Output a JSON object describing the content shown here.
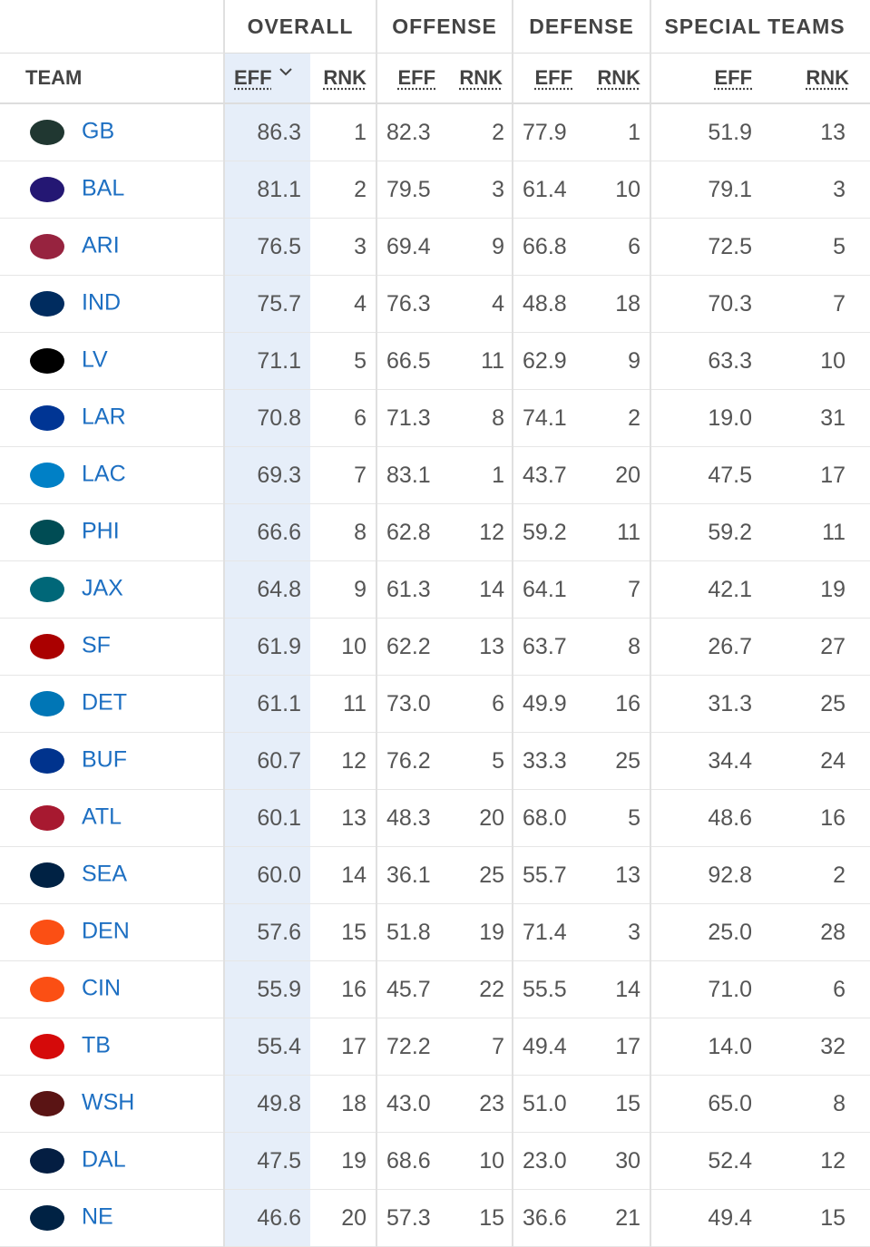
{
  "header": {
    "groups": [
      "OVERALL",
      "OFFENSE",
      "DEFENSE",
      "SPECIAL TEAMS"
    ],
    "columns": [
      "TEAM",
      "EFF",
      "RNK",
      "EFF",
      "RNK",
      "EFF",
      "RNK",
      "EFF",
      "RNK"
    ]
  },
  "rows": [
    {
      "team": "GB",
      "cells": [
        "86.3",
        "1",
        "82.3",
        "2",
        "77.9",
        "1",
        "51.9",
        "13"
      ]
    },
    {
      "team": "BAL",
      "cells": [
        "81.1",
        "2",
        "79.5",
        "3",
        "61.4",
        "10",
        "79.1",
        "3"
      ]
    },
    {
      "team": "ARI",
      "cells": [
        "76.5",
        "3",
        "69.4",
        "9",
        "66.8",
        "6",
        "72.5",
        "5"
      ]
    },
    {
      "team": "IND",
      "cells": [
        "75.7",
        "4",
        "76.3",
        "4",
        "48.8",
        "18",
        "70.3",
        "7"
      ]
    },
    {
      "team": "LV",
      "cells": [
        "71.1",
        "5",
        "66.5",
        "11",
        "62.9",
        "9",
        "63.3",
        "10"
      ]
    },
    {
      "team": "LAR",
      "cells": [
        "70.8",
        "6",
        "71.3",
        "8",
        "74.1",
        "2",
        "19.0",
        "31"
      ]
    },
    {
      "team": "LAC",
      "cells": [
        "69.3",
        "7",
        "83.1",
        "1",
        "43.7",
        "20",
        "47.5",
        "17"
      ]
    },
    {
      "team": "PHI",
      "cells": [
        "66.6",
        "8",
        "62.8",
        "12",
        "59.2",
        "11",
        "59.2",
        "11"
      ]
    },
    {
      "team": "JAX",
      "cells": [
        "64.8",
        "9",
        "61.3",
        "14",
        "64.1",
        "7",
        "42.1",
        "19"
      ]
    },
    {
      "team": "SF",
      "cells": [
        "61.9",
        "10",
        "62.2",
        "13",
        "63.7",
        "8",
        "26.7",
        "27"
      ]
    },
    {
      "team": "DET",
      "cells": [
        "61.1",
        "11",
        "73.0",
        "6",
        "49.9",
        "16",
        "31.3",
        "25"
      ]
    },
    {
      "team": "BUF",
      "cells": [
        "60.7",
        "12",
        "76.2",
        "5",
        "33.3",
        "25",
        "34.4",
        "24"
      ]
    },
    {
      "team": "ATL",
      "cells": [
        "60.1",
        "13",
        "48.3",
        "20",
        "68.0",
        "5",
        "48.6",
        "16"
      ]
    },
    {
      "team": "SEA",
      "cells": [
        "60.0",
        "14",
        "36.1",
        "25",
        "55.7",
        "13",
        "92.8",
        "2"
      ]
    },
    {
      "team": "DEN",
      "cells": [
        "57.6",
        "15",
        "51.8",
        "19",
        "71.4",
        "3",
        "25.0",
        "28"
      ]
    },
    {
      "team": "CIN",
      "cells": [
        "55.9",
        "16",
        "45.7",
        "22",
        "55.5",
        "14",
        "71.0",
        "6"
      ]
    },
    {
      "team": "TB",
      "cells": [
        "55.4",
        "17",
        "72.2",
        "7",
        "49.4",
        "17",
        "14.0",
        "32"
      ]
    },
    {
      "team": "WSH",
      "cells": [
        "49.8",
        "18",
        "43.0",
        "23",
        "51.0",
        "15",
        "65.0",
        "8"
      ]
    },
    {
      "team": "DAL",
      "cells": [
        "47.5",
        "19",
        "68.6",
        "10",
        "23.0",
        "30",
        "52.4",
        "12"
      ]
    },
    {
      "team": "NE",
      "cells": [
        "46.6",
        "20",
        "57.3",
        "15",
        "36.6",
        "21",
        "49.4",
        "15"
      ]
    }
  ]
}
